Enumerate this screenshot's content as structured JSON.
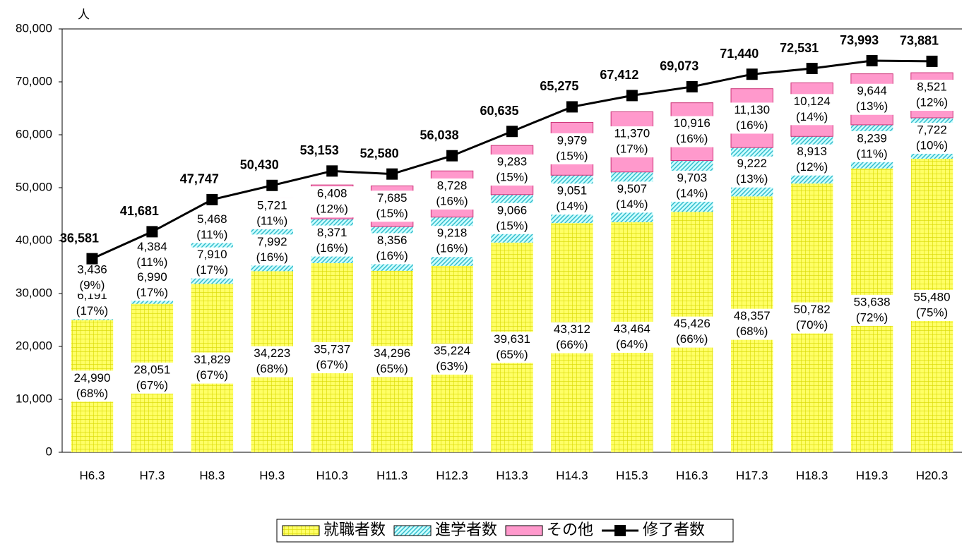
{
  "chart_data": {
    "type": "bar",
    "stacked": true,
    "y_unit_label": "人",
    "categories": [
      "H6.3",
      "H7.3",
      "H8.3",
      "H9.3",
      "H10.3",
      "H11.3",
      "H12.3",
      "H13.3",
      "H14.3",
      "H15.3",
      "H16.3",
      "H17.3",
      "H18.3",
      "H19.3",
      "H20.3"
    ],
    "series": [
      {
        "name": "就職者数",
        "type": "bar",
        "color": "#ffff66",
        "pattern": "grid",
        "values": [
          24990,
          28051,
          31829,
          34223,
          35737,
          34296,
          35224,
          39631,
          43312,
          43464,
          45426,
          48357,
          50782,
          53638,
          55480
        ],
        "value_labels": [
          "24,990",
          "28,051",
          "31,829",
          "34,223",
          "35,737",
          "34,296",
          "35,224",
          "39,631",
          "43,312",
          "43,464",
          "45,426",
          "48,357",
          "50,782",
          "53,638",
          "55,480"
        ],
        "percent_labels": [
          "(68%)",
          "(67%)",
          "(67%)",
          "(68%)",
          "(67%)",
          "(65%)",
          "(63%)",
          "(65%)",
          "(66%)",
          "(64%)",
          "(66%)",
          "(68%)",
          "(70%)",
          "(72%)",
          "(75%)"
        ]
      },
      {
        "name": "進学者数",
        "type": "bar",
        "color": "#99ffff",
        "pattern": "hatch",
        "values": [
          6191,
          6990,
          7910,
          7992,
          8371,
          8356,
          9218,
          9066,
          9051,
          9507,
          9703,
          9222,
          8913,
          8239,
          7722
        ],
        "value_labels": [
          "6,191",
          "6,990",
          "7,910",
          "7,992",
          "8,371",
          "8,356",
          "9,218",
          "9,066",
          "9,051",
          "9,507",
          "9,703",
          "9,222",
          "8,913",
          "8,239",
          "7,722"
        ],
        "percent_labels": [
          "(17%)",
          "(17%)",
          "(17%)",
          "(16%)",
          "(16%)",
          "(16%)",
          "(16%)",
          "(15%)",
          "(14%)",
          "(14%)",
          "(14%)",
          "(13%)",
          "(12%)",
          "(11%)",
          "(10%)"
        ]
      },
      {
        "name": "その他",
        "type": "bar",
        "color": "#ff99cc",
        "pattern": "solid",
        "values": [
          3436,
          4384,
          5468,
          5721,
          6408,
          7685,
          8728,
          9283,
          9979,
          11370,
          10916,
          11130,
          10124,
          9644,
          8521
        ],
        "value_labels": [
          "3,436",
          "4,384",
          "5,468",
          "5,721",
          "6,408",
          "7,685",
          "8,728",
          "9,283",
          "9,979",
          "11,370",
          "10,916",
          "11,130",
          "10,124",
          "9,644",
          "8,521"
        ],
        "percent_labels": [
          "(9%)",
          "(11%)",
          "(11%)",
          "(11%)",
          "(12%)",
          "(15%)",
          "(16%)",
          "(15%)",
          "(15%)",
          "(17%)",
          "(16%)",
          "(16%)",
          "(14%)",
          "(13%)",
          "(12%)"
        ]
      },
      {
        "name": "修了者数",
        "type": "line",
        "color": "#000000",
        "values": [
          36581,
          41681,
          47747,
          50430,
          53153,
          52580,
          56038,
          60635,
          65275,
          67412,
          69073,
          71440,
          72531,
          73993,
          73881
        ],
        "value_labels": [
          "36,581",
          "41,681",
          "47,747",
          "50,430",
          "53,153",
          "52,580",
          "56,038",
          "60,635",
          "65,275",
          "67,412",
          "69,073",
          "71,440",
          "72,531",
          "73,993",
          "73,881"
        ]
      }
    ],
    "ylim": [
      0,
      80000
    ],
    "yticks": [
      0,
      {
        "value": 10000,
        "label": "10,000"
      },
      {
        "value": 20000,
        "label": "20,000"
      },
      {
        "value": 30000,
        "label": "30,000"
      },
      {
        "value": 40000,
        "label": "40,000"
      },
      {
        "value": 50000,
        "label": "50,000"
      },
      {
        "value": 60000,
        "label": "60,000"
      },
      {
        "value": 70000,
        "label": "70,000"
      },
      {
        "value": 80000,
        "label": "80,000"
      }
    ],
    "grid": false,
    "legend": "bottom"
  }
}
